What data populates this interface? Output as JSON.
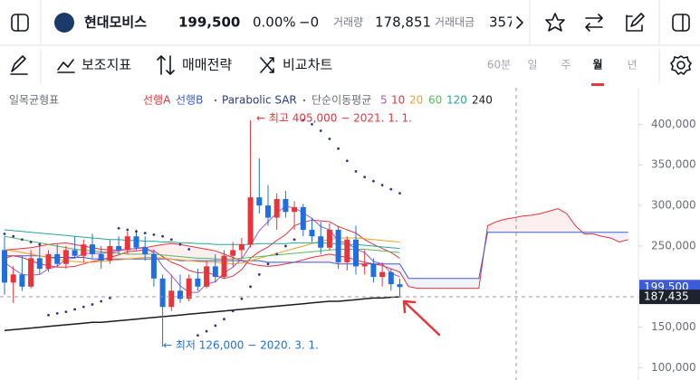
{
  "header": {
    "name": "현대모비스",
    "price": "199,500",
    "change_pct": "0.00%",
    "change": "−0",
    "volume_label": "거래량",
    "volume": "178,851",
    "amount_label": "거래대금",
    "amount": "357"
  },
  "toolbar": {
    "indicators": "보조지표",
    "strategy": "매매전략",
    "compare": "비교차트",
    "timeframes": [
      "60분",
      "일",
      "주",
      "월",
      "년"
    ],
    "selected_timeframe": 3
  },
  "chart_data": {
    "type": "candlestick",
    "indicator_label": "일목균형표",
    "up_color": "#e8343a",
    "down_color": "#1f6fe0",
    "ylim": [
      85000,
      445000
    ],
    "yticks": [
      {
        "value": 400000,
        "label": "400,000"
      },
      {
        "value": 350000,
        "label": "350,000"
      },
      {
        "value": 300000,
        "label": "300,000"
      },
      {
        "value": 250000,
        "label": "250,000"
      },
      {
        "value": 150000,
        "label": "150,000"
      },
      {
        "value": 100000,
        "label": "100,000"
      }
    ],
    "grid": false,
    "candles": {
      "open": [
        245000,
        205000,
        215000,
        200000,
        235000,
        222000,
        240000,
        228000,
        245000,
        238000,
        252000,
        240000,
        232000,
        250000,
        245000,
        262000,
        248000,
        240000,
        210000,
        175000,
        195000,
        185000,
        210000,
        200000,
        225000,
        212000,
        238000,
        245000,
        252000,
        310000,
        300000,
        285000,
        308000,
        292000,
        298000,
        270000,
        262000,
        248000,
        270000,
        230000,
        258000,
        225000,
        228000,
        212000,
        218000,
        203000
      ],
      "high": [
        262000,
        225000,
        238000,
        245000,
        250000,
        245000,
        252000,
        250000,
        262000,
        258000,
        265000,
        250000,
        258000,
        262000,
        268000,
        270000,
        262000,
        246000,
        215000,
        215000,
        215000,
        215000,
        222000,
        232000,
        240000,
        245000,
        255000,
        260000,
        405000,
        358000,
        325000,
        315000,
        318000,
        305000,
        302000,
        285000,
        280000,
        278000,
        275000,
        262000,
        275000,
        245000,
        235000,
        230000,
        222000,
        210000
      ],
      "low": [
        190000,
        180000,
        195000,
        198000,
        215000,
        218000,
        225000,
        222000,
        235000,
        230000,
        235000,
        222000,
        228000,
        240000,
        240000,
        245000,
        232000,
        200000,
        126000,
        170000,
        180000,
        182000,
        195000,
        198000,
        205000,
        210000,
        225000,
        235000,
        248000,
        290000,
        275000,
        270000,
        285000,
        270000,
        262000,
        255000,
        240000,
        245000,
        222000,
        220000,
        215000,
        215000,
        205000,
        200000,
        195000,
        188000
      ],
      "close": [
        205000,
        215000,
        200000,
        235000,
        222000,
        240000,
        228000,
        245000,
        238000,
        252000,
        240000,
        232000,
        250000,
        245000,
        262000,
        248000,
        240000,
        210000,
        175000,
        195000,
        185000,
        210000,
        200000,
        225000,
        212000,
        238000,
        245000,
        252000,
        310000,
        300000,
        285000,
        308000,
        292000,
        298000,
        270000,
        262000,
        248000,
        270000,
        230000,
        258000,
        225000,
        228000,
        212000,
        218000,
        203000,
        199500
      ]
    },
    "ichimoku": {
      "span_a": {
        "name": "선행A",
        "color": "#e8343a",
        "values": [
          245000,
          246000,
          247000,
          248000,
          250000,
          252000,
          253000,
          254000,
          252000,
          250000,
          248000,
          246000,
          245000,
          245000,
          246000,
          247000,
          248000,
          250000,
          252000,
          253000,
          252000,
          250000,
          248000,
          246000,
          244000,
          240000,
          236000,
          232000,
          228000,
          226000,
          225000,
          226000,
          228000,
          230000,
          233000,
          236000,
          238000,
          240000,
          238000,
          236000,
          233000,
          230000,
          228000,
          226000,
          222000,
          218000,
          200000,
          198000,
          198000,
          198000,
          198000,
          198000,
          198000,
          198000,
          198000,
          275000,
          280000,
          283000,
          285000,
          287000,
          288000,
          290000,
          293000,
          296000,
          290000,
          275000,
          265000,
          265000,
          262000,
          260000,
          255000,
          258000
        ]
      },
      "span_b": {
        "name": "선행B",
        "color": "#3b5bdb",
        "values": [
          238000,
          238000,
          238000,
          238000,
          238000,
          236000,
          236000,
          236000,
          236000,
          236000,
          234000,
          234000,
          234000,
          234000,
          234000,
          234000,
          234000,
          234000,
          234000,
          234000,
          232000,
          232000,
          232000,
          232000,
          232000,
          232000,
          232000,
          232000,
          232000,
          232000,
          230000,
          230000,
          230000,
          230000,
          230000,
          230000,
          230000,
          230000,
          228000,
          228000,
          228000,
          228000,
          228000,
          228000,
          228000,
          228000,
          210000,
          210000,
          210000,
          210000,
          210000,
          210000,
          210000,
          210000,
          210000,
          267000,
          267000,
          267000,
          267000,
          267000,
          267000,
          267000,
          267000,
          267000,
          267000,
          267000,
          267000,
          267000,
          267000,
          267000,
          267000,
          267000
        ]
      }
    },
    "sar": {
      "name": "Parabolic SAR",
      "color": "#2b3a8c",
      "values": [
        265000,
        262000,
        258000,
        255000,
        252000,
        165000,
        167000,
        169000,
        172000,
        175000,
        178000,
        182000,
        186000,
        272000,
        270000,
        268000,
        266000,
        264000,
        262000,
        258000,
        252000,
        246000,
        140000,
        145000,
        152000,
        160000,
        170000,
        185000,
        200000,
        215000,
        228000,
        240000,
        250000,
        258000,
        405000,
        400000,
        392000,
        382000,
        370000,
        355000,
        342000,
        335000,
        330000,
        325000,
        320000,
        315000
      ]
    },
    "moving_averages": {
      "name": "단순이동평균",
      "series": [
        {
          "name": "5",
          "color": "#9b59d0",
          "values": [
            230000,
            222000,
            215000,
            214000,
            215000,
            222000,
            225000,
            234000,
            235000,
            241000,
            241000,
            241000,
            242000,
            244000,
            246000,
            247000,
            249000,
            241000,
            225000,
            214000,
            201000,
            193000,
            193000,
            203000,
            206000,
            217000,
            224000,
            234000,
            251000,
            269000,
            280000,
            291000,
            299000,
            297000,
            291000,
            284000,
            274000,
            270000,
            256000,
            254000,
            246000,
            242000,
            231000,
            228000,
            217000,
            212000
          ]
        },
        {
          "name": "10",
          "color": "#e8343a",
          "values": [
            235000,
            238000,
            236000,
            232000,
            228000,
            226000,
            224000,
            224000,
            225000,
            228000,
            231000,
            233000,
            236000,
            239000,
            243000,
            244000,
            245000,
            244000,
            237000,
            230000,
            226000,
            220000,
            217000,
            218000,
            214000,
            210000,
            213000,
            221000,
            235000,
            243000,
            249000,
            257000,
            264000,
            275000,
            279000,
            282000,
            281000,
            280000,
            274000,
            270000,
            266000,
            258000,
            252000,
            247000,
            242000,
            235000
          ]
        },
        {
          "name": "20",
          "color": "#f0a020",
          "values": [
            245000,
            244000,
            242000,
            240000,
            238000,
            236000,
            234000,
            232000,
            231000,
            230000,
            230000,
            231000,
            232000,
            233000,
            234000,
            235000,
            236000,
            236000,
            235000,
            234000,
            233000,
            232000,
            231000,
            230000,
            230000,
            229000,
            228000,
            229000,
            232000,
            235000,
            238000,
            241000,
            244000,
            247000,
            250000,
            253000,
            256000,
            258000,
            260000,
            260000,
            260000,
            259000,
            258000,
            257000,
            256000,
            255000
          ]
        },
        {
          "name": "60",
          "color": "#5cb85c",
          "values": [
            262000,
            260000,
            258000,
            256000,
            254000,
            252000,
            250000,
            248000,
            246000,
            245000,
            244000,
            243000,
            242000,
            241000,
            240000,
            240000,
            240000,
            240000,
            239000,
            238000,
            237000,
            236000,
            235000,
            235000,
            234000,
            234000,
            234000,
            235000,
            236000,
            237000,
            238000,
            239000,
            240000,
            241000,
            242000,
            243000,
            244000,
            245000,
            246000,
            246000,
            246000,
            246000,
            245000,
            244000,
            243000,
            242000
          ]
        },
        {
          "name": "120",
          "color": "#26a69a",
          "values": [
            270000,
            269000,
            268000,
            267000,
            266000,
            265000,
            264000,
            263000,
            262000,
            261000,
            260000,
            259000,
            258000,
            258000,
            257000,
            257000,
            256000,
            256000,
            255000,
            255000,
            254000,
            254000,
            253000,
            253000,
            252000,
            252000,
            252000,
            252000,
            252000,
            253000,
            253000,
            253000,
            253000,
            254000,
            254000,
            254000,
            254000,
            253000,
            253000,
            252000,
            252000,
            251000,
            250000,
            249000,
            248000,
            247000
          ]
        },
        {
          "name": "240",
          "color": "#1c1c1c",
          "values": [
            146000,
            147000,
            148000,
            149000,
            150000,
            151000,
            152000,
            153000,
            154000,
            155000,
            156000,
            156000,
            157000,
            158000,
            159000,
            160000,
            161000,
            162000,
            163000,
            164000,
            165000,
            166000,
            167000,
            168000,
            169000,
            170000,
            171000,
            172000,
            173000,
            174000,
            175000,
            176000,
            177000,
            178000,
            179000,
            180000,
            181000,
            182000,
            182000,
            183000,
            184000,
            185000,
            186000,
            186000,
            187000,
            187435
          ]
        }
      ]
    },
    "annotations": [
      {
        "text": "← 최고 405,000 − 2021. 1. 1.",
        "color": "#e8343a"
      },
      {
        "text": "← 최저 126,000 − 2020. 3. 1.",
        "color": "#1f6fe0"
      }
    ],
    "price_tags": [
      {
        "value": 199500,
        "label": "199,500",
        "color": "#3b5bdb"
      },
      {
        "value": 187435,
        "label": "187,435",
        "color": "#1e222d"
      }
    ]
  }
}
